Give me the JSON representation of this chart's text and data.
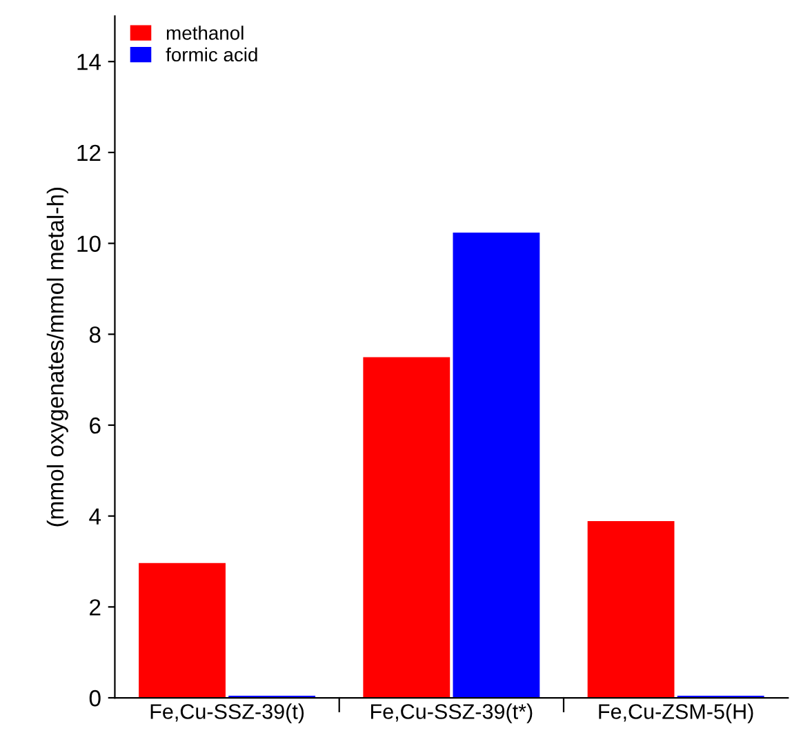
{
  "chart_data": {
    "type": "bar",
    "ylabel": "(mmol oxygenates/mmol metal-h)",
    "categories": [
      "Fe,Cu-SSZ-39(t)",
      "Fe,Cu-SSZ-39(t*)",
      "Fe,Cu-ZSM-5(H)"
    ],
    "series": [
      {
        "name": "methanol",
        "color": "#ff0000",
        "values": [
          2.95,
          7.48,
          3.87
        ]
      },
      {
        "name": "formic acid",
        "color": "#0000ff",
        "values": [
          0.03,
          10.22,
          0.03
        ]
      }
    ],
    "ylim": [
      0,
      15
    ],
    "yticks": [
      0,
      2,
      4,
      6,
      8,
      10,
      12,
      14
    ],
    "grid": false,
    "legend": "top left"
  }
}
